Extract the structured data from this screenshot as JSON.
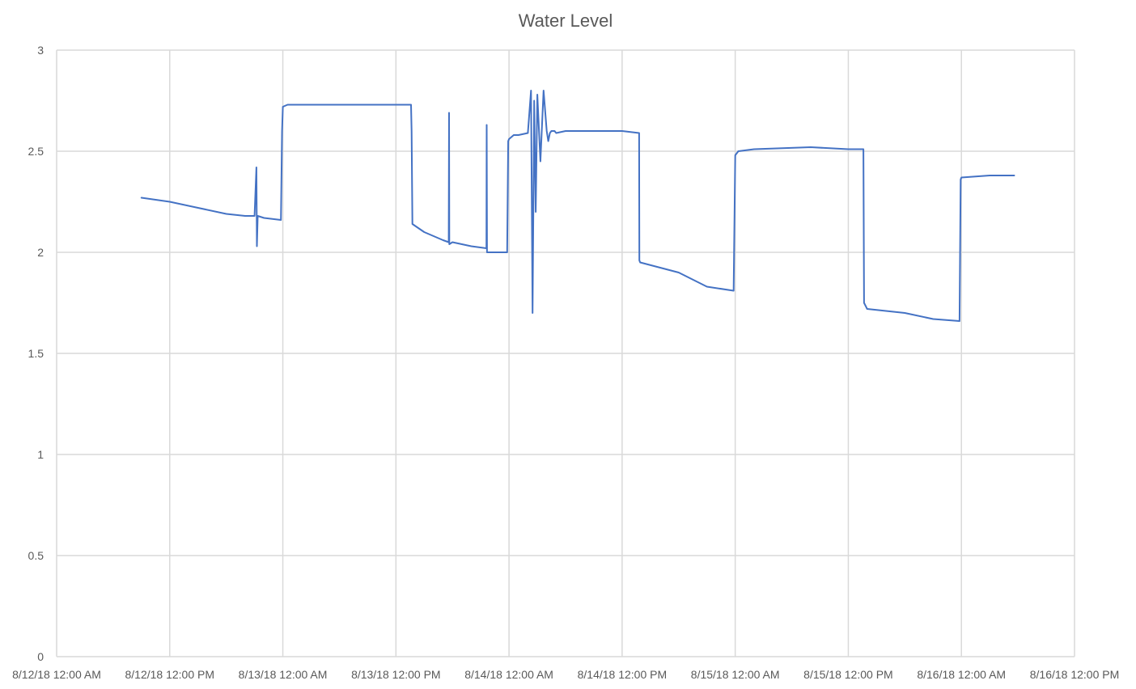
{
  "chart_data": {
    "type": "line",
    "title": "Water Level",
    "xlabel": "",
    "ylabel": "",
    "xlim": [
      "8/12/18 12:00 AM",
      "8/16/18 12:00 PM"
    ],
    "ylim": [
      0,
      3
    ],
    "grid": true,
    "legend": "none",
    "x_tick_labels": [
      "8/12/18 12:00 AM",
      "8/12/18 12:00 PM",
      "8/13/18 12:00 AM",
      "8/13/18 12:00 PM",
      "8/14/18 12:00 AM",
      "8/14/18 12:00 PM",
      "8/15/18 12:00 AM",
      "8/15/18 12:00 PM",
      "8/16/18 12:00 AM",
      "8/16/18 12:00 PM"
    ],
    "y_tick_labels": [
      "0",
      "0.5",
      "1",
      "1.5",
      "2",
      "2.5",
      "3"
    ],
    "series": [
      {
        "color": "#4472c4",
        "x": [
          "8/12/18 9:00 AM",
          "8/12/18 12:00 PM",
          "8/12/18 3:00 PM",
          "8/12/18 6:00 PM",
          "8/12/18 8:00 PM",
          "8/12/18 9:00 PM",
          "8/12/18 9:12 PM",
          "8/12/18 9:15 PM",
          "8/12/18 9:20 PM",
          "8/12/18 10:00 PM",
          "8/12/18 11:48 PM",
          "8/12/18 11:55 PM",
          "8/13/18 12:00 AM",
          "8/13/18 12:30 AM",
          "8/13/18 2:00 AM",
          "8/13/18 6:00 AM",
          "8/13/18 12:00 PM",
          "8/13/18 1:36 PM",
          "8/13/18 1:40 PM",
          "8/13/18 1:45 PM",
          "8/13/18 3:00 PM",
          "8/13/18 5:00 PM",
          "8/13/18 5:36 PM",
          "8/13/18 5:38 PM",
          "8/13/18 5:40 PM",
          "8/13/18 6:00 PM",
          "8/13/18 8:00 PM",
          "8/13/18 9:36 PM",
          "8/13/18 9:38 PM",
          "8/13/18 9:40 PM",
          "8/13/18 11:48 PM",
          "8/13/18 11:55 PM",
          "8/14/18 12:00 AM",
          "8/14/18 12:30 AM",
          "8/14/18 1:00 AM",
          "8/14/18 2:00 AM",
          "8/14/18 2:20 AM",
          "8/14/18 2:30 AM",
          "8/14/18 2:40 AM",
          "8/14/18 2:50 AM",
          "8/14/18 3:00 AM",
          "8/14/18 3:20 AM",
          "8/14/18 3:40 AM",
          "8/14/18 4:00 AM",
          "8/14/18 4:10 AM",
          "8/14/18 4:20 AM",
          "8/14/18 4:30 AM",
          "8/14/18 4:40 AM",
          "8/14/18 4:50 AM",
          "8/14/18 5:00 AM",
          "8/14/18 6:00 AM",
          "8/14/18 12:00 PM",
          "8/14/18 1:48 PM",
          "8/14/18 1:50 PM",
          "8/14/18 1:55 PM",
          "8/14/18 6:00 PM",
          "8/14/18 9:00 PM",
          "8/14/18 11:50 PM",
          "8/15/18 12:00 AM",
          "8/15/18 12:20 AM",
          "8/15/18 2:00 AM",
          "8/15/18 8:00 AM",
          "8/15/18 12:00 PM",
          "8/15/18 1:36 PM",
          "8/15/18 1:40 PM",
          "8/15/18 2:00 PM",
          "8/15/18 6:00 PM",
          "8/15/18 9:00 PM",
          "8/15/18 11:48 PM",
          "8/15/18 11:55 PM",
          "8/16/18 12:00 AM",
          "8/16/18 3:00 AM",
          "8/16/18 5:36 AM"
        ],
        "values": [
          2.27,
          2.25,
          2.22,
          2.19,
          2.18,
          2.18,
          2.42,
          2.03,
          2.18,
          2.17,
          2.16,
          2.6,
          2.72,
          2.73,
          2.73,
          2.73,
          2.73,
          2.73,
          2.6,
          2.14,
          2.1,
          2.06,
          2.05,
          2.69,
          2.04,
          2.05,
          2.03,
          2.02,
          2.63,
          2.0,
          2.0,
          2.55,
          2.56,
          2.58,
          2.58,
          2.59,
          2.8,
          1.7,
          2.75,
          2.2,
          2.78,
          2.45,
          2.8,
          2.6,
          2.55,
          2.59,
          2.6,
          2.6,
          2.6,
          2.59,
          2.6,
          2.6,
          2.59,
          1.96,
          1.95,
          1.9,
          1.83,
          1.81,
          2.48,
          2.5,
          2.51,
          2.52,
          2.51,
          2.51,
          1.75,
          1.72,
          1.7,
          1.67,
          1.66,
          2.36,
          2.37,
          2.38,
          2.38
        ]
      }
    ]
  }
}
